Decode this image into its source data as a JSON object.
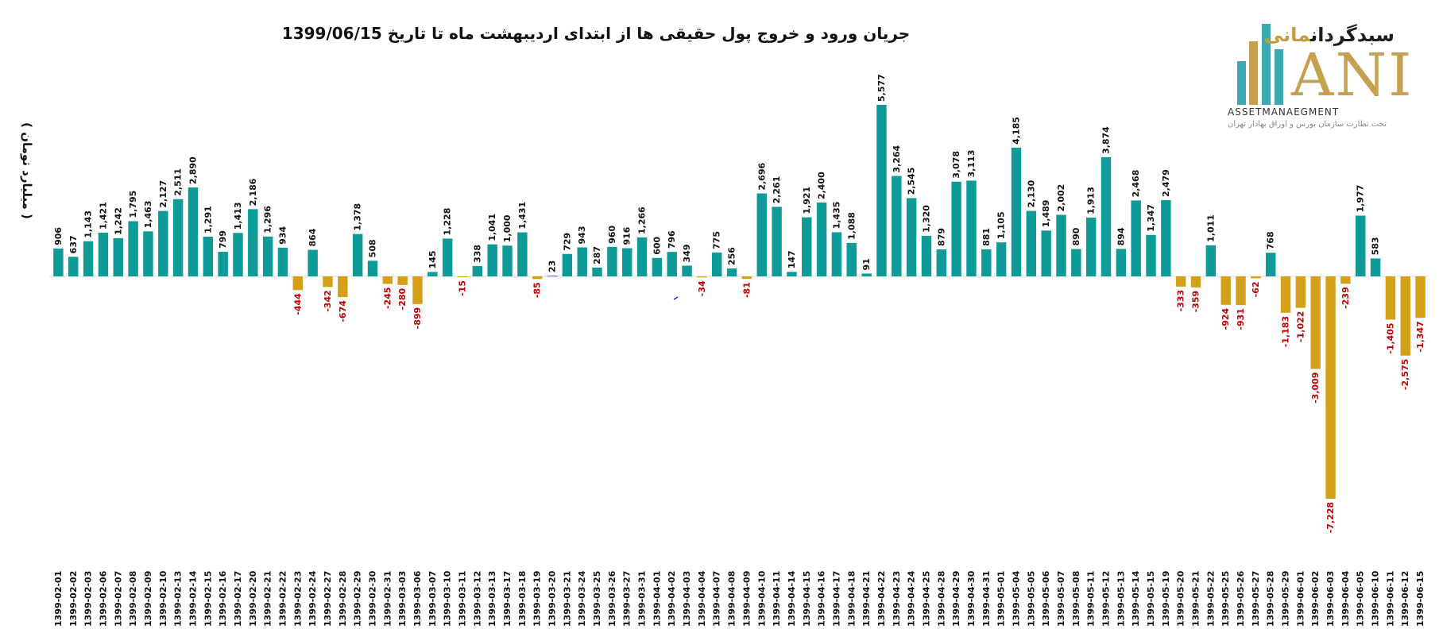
{
  "colors": {
    "positive": "#0e9a97",
    "negative": "#d4a017",
    "positive_label": "#111111",
    "negative_label": "#c00000"
  },
  "logo": {
    "brand_main": "سبدگردان",
    "brand_accent": "مانی",
    "letters": "ANI",
    "english": "ASSETMANAEGMENT",
    "subtitle": "تحت نظارت سازمان بورس و اوراق بهادار تهران"
  },
  "chart_data": {
    "type": "bar",
    "title": "جریان ورود و خروج پول حقیقی ها از ابتدای اردیبهشت ماه تا تاریخ 1399/06/15",
    "ylabel": "( میلیارد تومان )",
    "xlabel": "",
    "grid": false,
    "legend": "none",
    "ylim": [
      -7500,
      6000
    ],
    "categories": [
      "1399-02-01",
      "1399-02-02",
      "1399-02-03",
      "1399-02-06",
      "1399-02-07",
      "1399-02-08",
      "1399-02-09",
      "1399-02-10",
      "1399-02-13",
      "1399-02-14",
      "1399-02-15",
      "1399-02-16",
      "1399-02-17",
      "1399-02-20",
      "1399-02-21",
      "1399-02-22",
      "1399-02-23",
      "1399-02-24",
      "1399-02-27",
      "1399-02-28",
      "1399-02-29",
      "1399-02-30",
      "1399-02-31",
      "1399-03-03",
      "1399-03-06",
      "1399-03-07",
      "1399-03-10",
      "1399-03-11",
      "1399-03-12",
      "1399-03-13",
      "1399-03-17",
      "1399-03-18",
      "1399-03-19",
      "1399-03-20",
      "1399-03-21",
      "1399-03-24",
      "1399-03-25",
      "1399-03-26",
      "1399-03-27",
      "1399-03-31",
      "1399-04-01",
      "1399-04-02",
      "1399-04-03",
      "1399-04-04",
      "1399-04-07",
      "1399-04-08",
      "1399-04-09",
      "1399-04-10",
      "1399-04-11",
      "1399-04-14",
      "1399-04-15",
      "1399-04-16",
      "1399-04-17",
      "1399-04-18",
      "1399-04-21",
      "1399-04-22",
      "1399-04-23",
      "1399-04-24",
      "1399-04-25",
      "1399-04-28",
      "1399-04-29",
      "1399-04-30",
      "1399-04-31",
      "1399-05-01",
      "1399-05-04",
      "1399-05-05",
      "1399-05-06",
      "1399-05-07",
      "1399-05-08",
      "1399-05-11",
      "1399-05-12",
      "1399-05-13",
      "1399-05-14",
      "1399-05-15",
      "1399-05-19",
      "1399-05-20",
      "1399-05-21",
      "1399-05-22",
      "1399-05-25",
      "1399-05-26",
      "1399-05-27",
      "1399-05-28",
      "1399-05-29",
      "1399-06-01",
      "1399-06-02",
      "1399-06-03",
      "1399-06-04",
      "1399-06-05",
      "1399-06-10",
      "1399-06-11",
      "1399-06-12",
      "1399-06-15"
    ],
    "values": [
      906,
      637,
      1143,
      1421,
      1242,
      1795,
      1463,
      2127,
      2511,
      2890,
      1291,
      799,
      1413,
      2186,
      1296,
      934,
      -444,
      864,
      -342,
      -674,
      1378,
      508,
      -245,
      -280,
      -899,
      145,
      1228,
      -15,
      338,
      1041,
      1000,
      1431,
      -85,
      23,
      729,
      943,
      287,
      960,
      916,
      1266,
      600,
      796,
      349,
      -34,
      775,
      256,
      -81,
      2696,
      2261,
      147,
      1921,
      2400,
      1435,
      1088,
      91,
      5577,
      3264,
      2545,
      1320,
      879,
      3078,
      3113,
      881,
      1105,
      4185,
      2130,
      1489,
      2002,
      890,
      1913,
      3874,
      894,
      2468,
      1347,
      2479,
      -333,
      -359,
      1011,
      -924,
      -931,
      -62,
      768,
      -1183,
      -1022,
      -3009,
      -7228,
      -239,
      1977,
      583,
      -1405,
      -2575,
      -1347
    ],
    "value_labels": [
      "906",
      "637",
      "1,143",
      "1,421",
      "1,242",
      "1,795",
      "1,463",
      "2,127",
      "2,511",
      "2,890",
      "1,291",
      "799",
      "1,413",
      "2,186",
      "1,296",
      "934",
      "-444",
      "864",
      "-342",
      "-674",
      "1,378",
      "508",
      "-245",
      "-280",
      "-899",
      "145",
      "1,228",
      "-15",
      "338",
      "1,041",
      "1,000",
      "1,431",
      "-85",
      "23",
      "729",
      "943",
      "287",
      "960",
      "916",
      "1,266",
      "600",
      "796",
      "349",
      "-34",
      "775",
      "256",
      "-81",
      "2,696",
      "2,261",
      "147",
      "1,921",
      "2,400",
      "1,435",
      "1,088",
      "91",
      "5,577",
      "3,264",
      "2,545",
      "1,320",
      "879",
      "3,078",
      "3,113",
      "881",
      "1,105",
      "4,185",
      "2,130",
      "1,489",
      "2,002",
      "890",
      "1,913",
      "3,874",
      "894",
      "2,468",
      "1,347",
      "2,479",
      "-333",
      "-359",
      "1,011",
      "-924",
      "-931",
      "-62",
      "768",
      "-1,183",
      "-1,022",
      "-3,009",
      "-7,228",
      "-239",
      "1,977",
      "583",
      "-1,405",
      "-2,575",
      "-1,347"
    ]
  }
}
